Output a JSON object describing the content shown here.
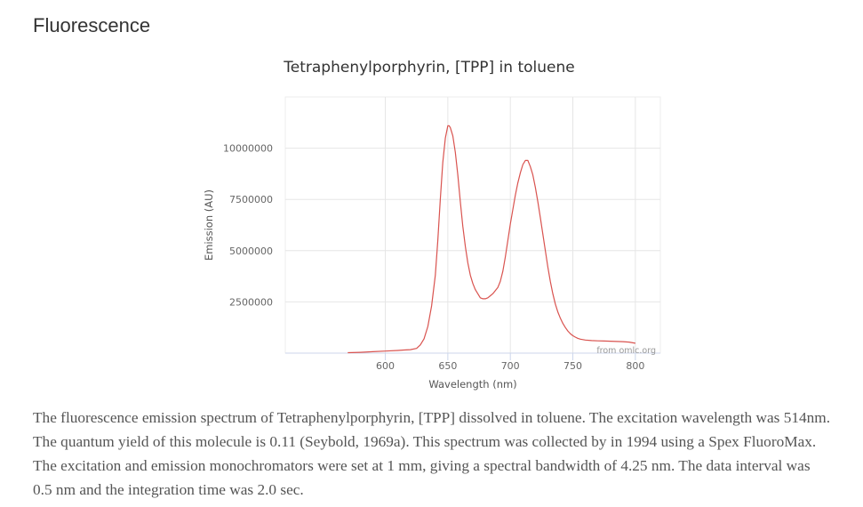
{
  "page": {
    "heading": "Fluorescence",
    "description": "The fluorescence emission spectrum of Tetraphenylporphyrin, [TPP] dissolved in toluene. The excitation wavelength was 514nm. The quantum yield of this molecule is 0.11 (Seybold, 1969a). This spectrum was collected by in 1994 using a Spex FluoroMax. The excitation and emission monochromators were set at 1 mm, giving a spectral bandwidth of 4.25 nm. The data interval was 0.5 nm and the integration time was 2.0 sec."
  },
  "chart_data": {
    "type": "line",
    "title": "Tetraphenylporphyrin, [TPP] in toluene",
    "xlabel": "Wavelength (nm)",
    "ylabel": "Emission (AU)",
    "credit": "from omlc.org",
    "xlim": [
      520,
      820
    ],
    "ylim": [
      0,
      12500000
    ],
    "xticks": [
      600,
      650,
      700,
      750,
      800
    ],
    "xtick_labels": [
      "600",
      "650",
      "700",
      "750",
      "800"
    ],
    "yticks": [
      2500000,
      5000000,
      7500000,
      10000000
    ],
    "ytick_labels": [
      "2500000",
      "5000000",
      "7500000",
      "10000000"
    ],
    "grid": true,
    "legend": false,
    "colors": {
      "line": "#d9534f",
      "grid": "#e6e6e6",
      "axis": "#ccd6eb",
      "plot_border": "#eeeeee"
    },
    "series": [
      {
        "x": [
          570,
          580,
          590,
          600,
          610,
          615,
          620,
          625,
          628,
          631,
          634,
          637,
          640,
          642,
          644,
          646,
          648,
          650,
          651,
          652,
          654,
          656,
          658,
          660,
          662,
          664,
          666,
          668,
          670,
          672,
          674,
          676,
          678,
          680,
          682,
          684,
          686,
          688,
          690,
          692,
          694,
          696,
          698,
          700,
          702,
          704,
          706,
          708,
          710,
          712,
          714,
          716,
          717,
          718,
          720,
          722,
          724,
          726,
          728,
          730,
          732,
          734,
          736,
          738,
          740,
          742,
          744,
          746,
          748,
          750,
          752,
          754,
          756,
          760,
          765,
          770,
          775,
          780,
          785,
          790,
          795,
          800
        ],
        "y": [
          20000,
          40000,
          70000,
          100000,
          130000,
          150000,
          170000,
          230000,
          400000,
          700000,
          1300000,
          2300000,
          3800000,
          5500000,
          7500000,
          9300000,
          10500000,
          11100000,
          11100000,
          11000000,
          10600000,
          9800000,
          8700000,
          7400000,
          6200000,
          5200000,
          4400000,
          3800000,
          3400000,
          3100000,
          2900000,
          2700000,
          2650000,
          2650000,
          2700000,
          2800000,
          2900000,
          3050000,
          3200000,
          3500000,
          4000000,
          4700000,
          5500000,
          6300000,
          7000000,
          7700000,
          8300000,
          8800000,
          9200000,
          9400000,
          9400000,
          9100000,
          8900000,
          8700000,
          8100000,
          7400000,
          6600000,
          5800000,
          5000000,
          4200000,
          3500000,
          2900000,
          2400000,
          2000000,
          1700000,
          1450000,
          1250000,
          1080000,
          950000,
          850000,
          780000,
          720000,
          680000,
          640000,
          610000,
          600000,
          590000,
          580000,
          570000,
          560000,
          540000,
          480000
        ]
      }
    ]
  }
}
